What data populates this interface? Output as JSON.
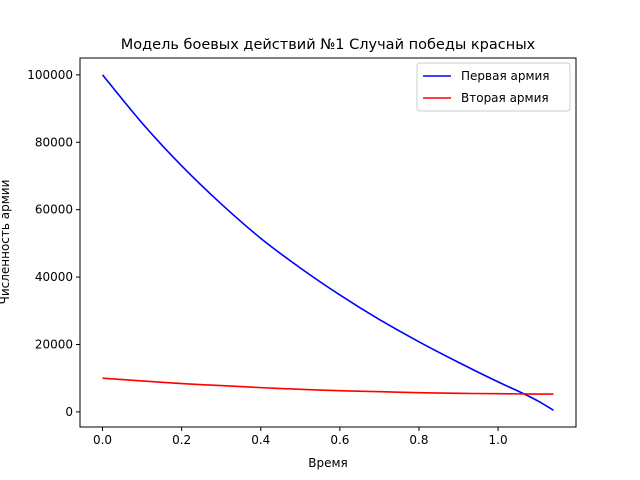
{
  "chart_data": {
    "type": "line",
    "title": "Модель боевых действий №1 Случай победы красных",
    "xlabel": "Время",
    "ylabel": "Численность армии",
    "xlim": [
      -0.057,
      1.197
    ],
    "ylim": [
      -4480,
      105000
    ],
    "x_ticks": [
      0.0,
      0.2,
      0.4,
      0.6,
      0.8,
      1.0
    ],
    "x_tick_labels": [
      "0.0",
      "0.2",
      "0.4",
      "0.6",
      "0.8",
      "1.0"
    ],
    "y_ticks": [
      0,
      20000,
      40000,
      60000,
      80000,
      100000
    ],
    "y_tick_labels": [
      "0",
      "20000",
      "40000",
      "60000",
      "80000",
      "100000"
    ],
    "grid": false,
    "legend_position": "top-right",
    "series": [
      {
        "name": "Первая армия",
        "color": "#0000ff",
        "x": [
          0.0,
          0.1,
          0.2,
          0.3,
          0.4,
          0.5,
          0.6,
          0.7,
          0.8,
          0.9,
          1.0,
          1.05,
          1.1,
          1.14
        ],
        "y": [
          100000,
          85700,
          73000,
          61700,
          51500,
          42700,
          34700,
          27400,
          20800,
          14700,
          8900,
          6200,
          3300,
          500
        ]
      },
      {
        "name": "Вторая армия",
        "color": "#ff0000",
        "x": [
          0.0,
          0.1,
          0.2,
          0.3,
          0.4,
          0.5,
          0.6,
          0.7,
          0.8,
          0.9,
          1.0,
          1.05,
          1.1,
          1.14
        ],
        "y": [
          10000,
          9200,
          8400,
          7800,
          7200,
          6700,
          6300,
          6000,
          5700,
          5500,
          5400,
          5350,
          5300,
          5300
        ]
      }
    ]
  }
}
